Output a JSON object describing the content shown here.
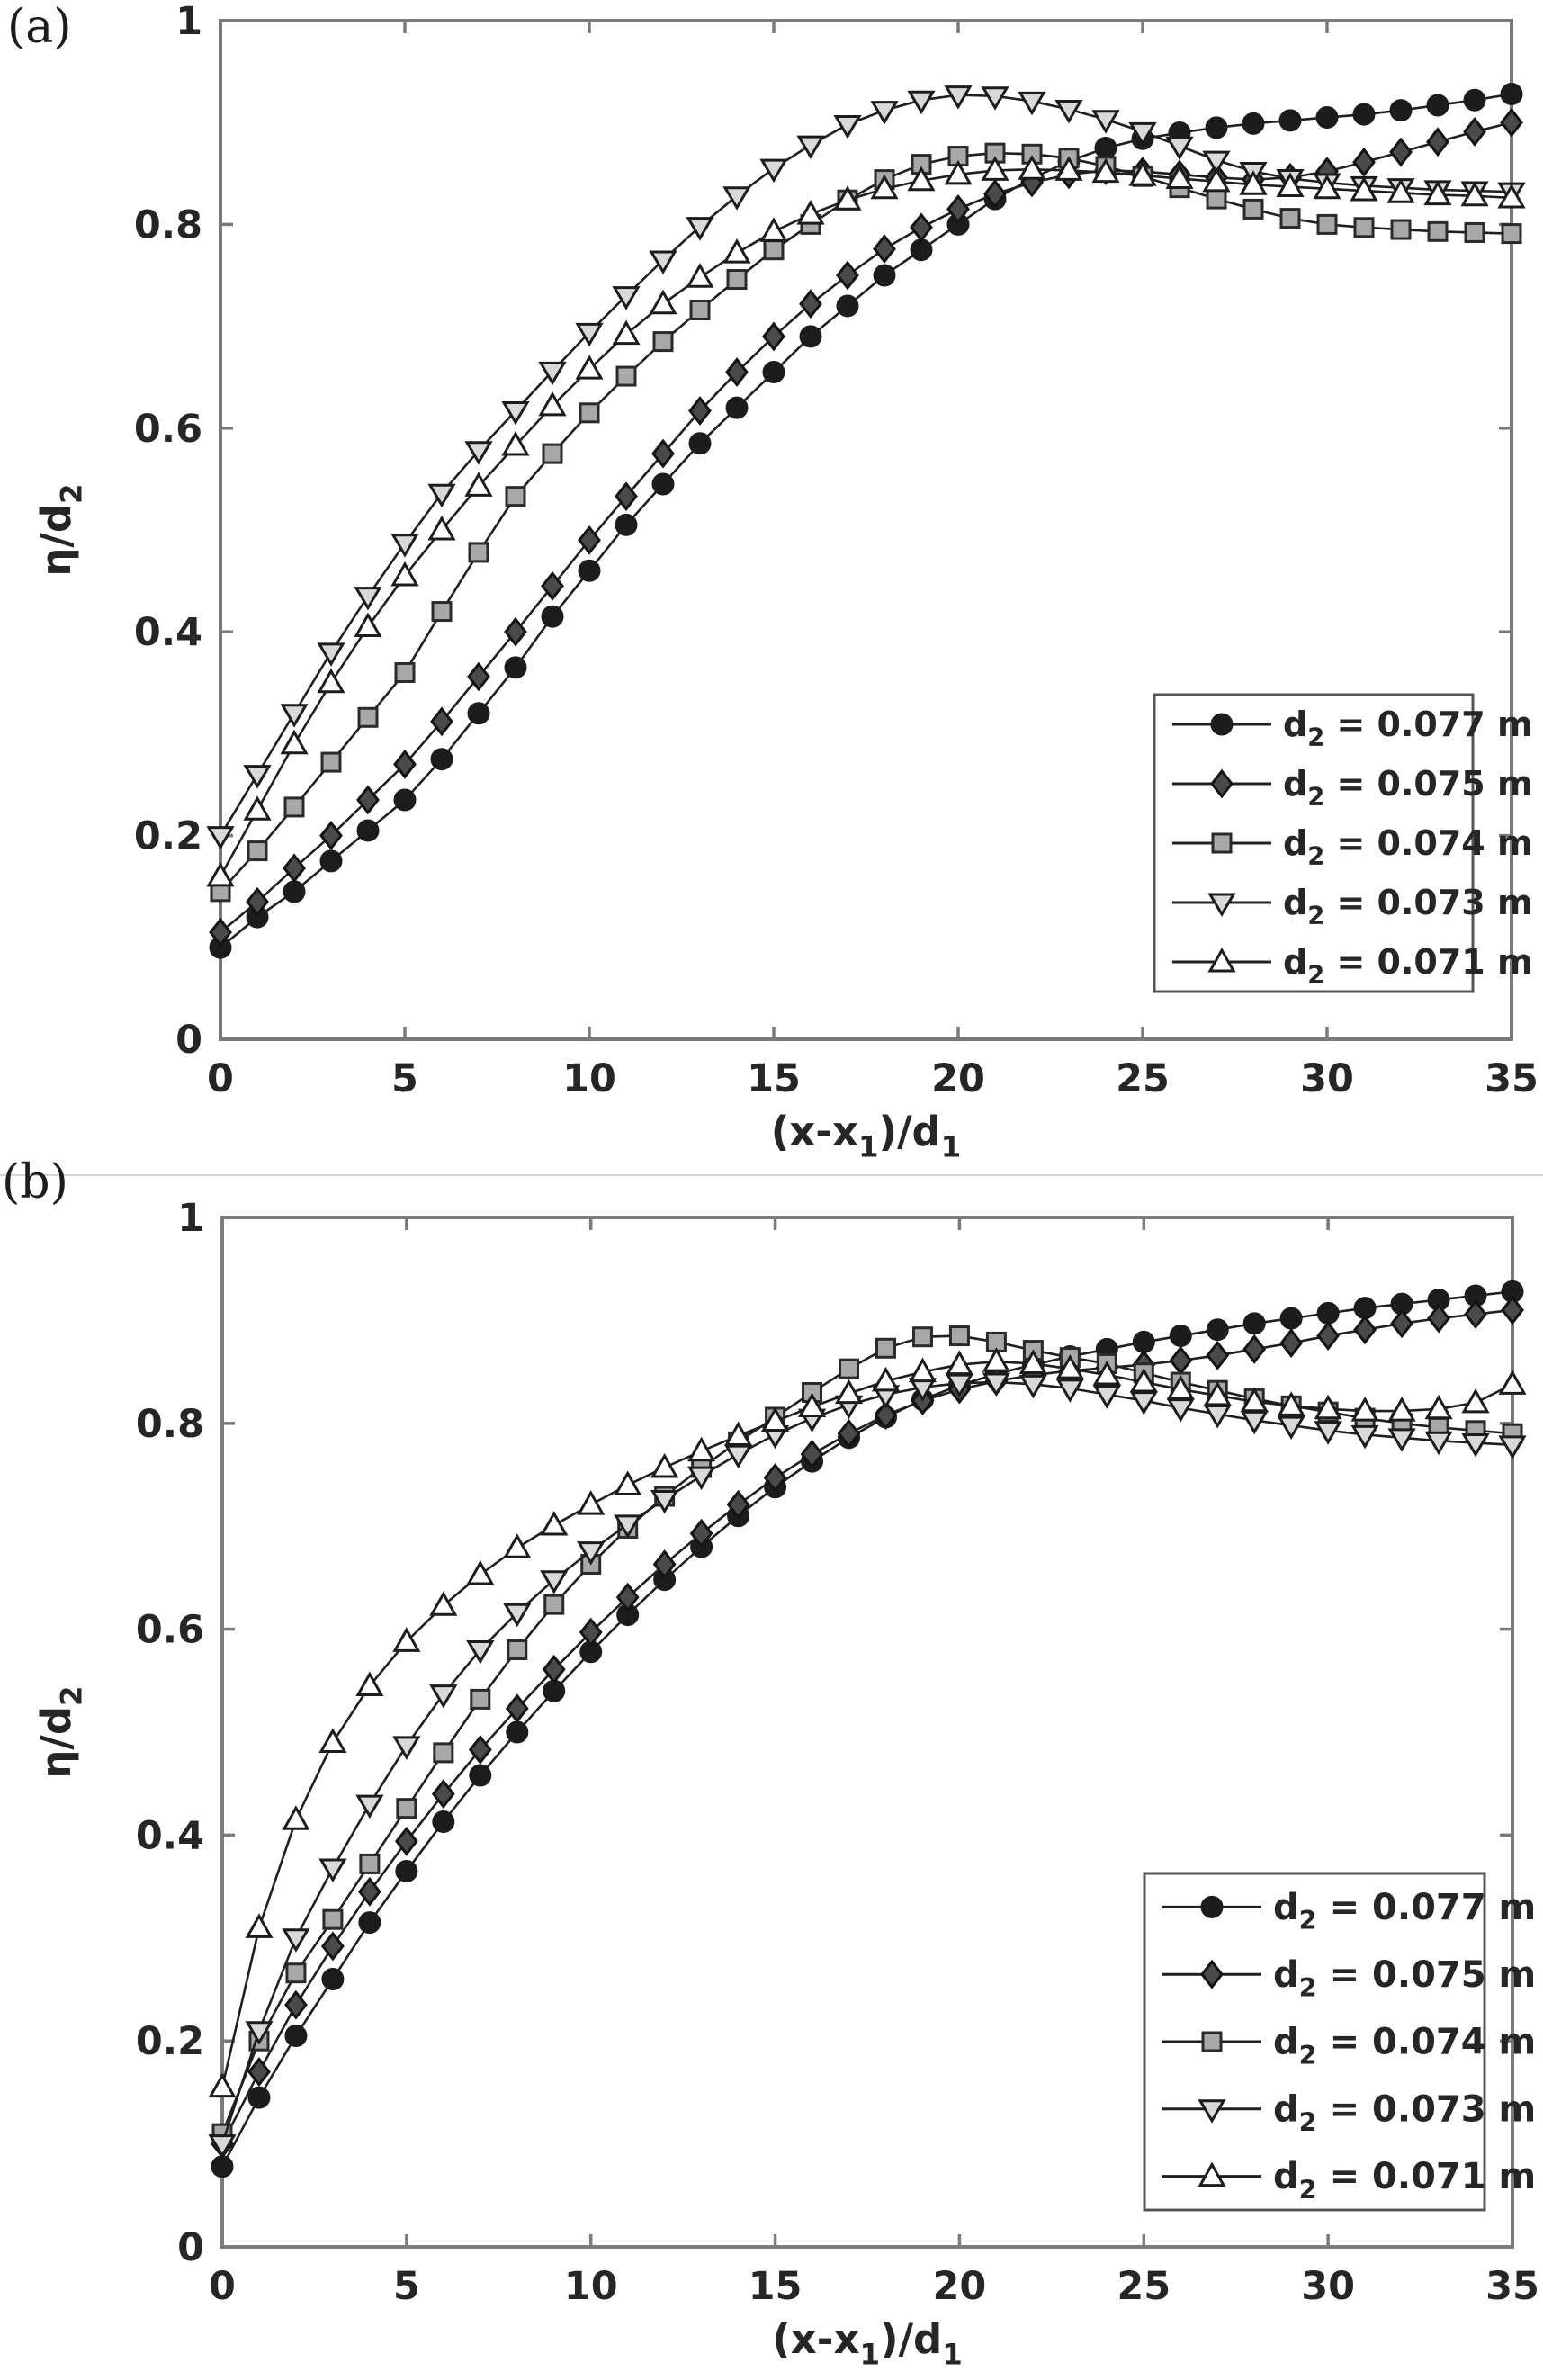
{
  "figure": {
    "panels": [
      {
        "tag": "(a)"
      },
      {
        "tag": "(b)"
      }
    ],
    "colors": {
      "axis": "#7a7a7a",
      "text": "#262626",
      "line": "#1f1f1f",
      "separator": "#d4d4d4"
    }
  },
  "chart_data": [
    {
      "type": "line",
      "panel": "(a)",
      "title": "",
      "xlabel": "(x-x_1)/d_1",
      "ylabel": "η/d_2",
      "xlim": [
        0,
        35
      ],
      "ylim": [
        0,
        1
      ],
      "xticks": [
        0,
        5,
        10,
        15,
        20,
        25,
        30,
        35
      ],
      "yticks": [
        0,
        0.2,
        0.4,
        0.6,
        0.8,
        1
      ],
      "grid": false,
      "legend_position": "lower right",
      "x": [
        0,
        1,
        2,
        3,
        4,
        5,
        6,
        7,
        8,
        9,
        10,
        11,
        12,
        13,
        14,
        15,
        16,
        17,
        18,
        19,
        20,
        21,
        22,
        23,
        24,
        25,
        26,
        27,
        28,
        29,
        30,
        31,
        32,
        33,
        34,
        35
      ],
      "series": [
        {
          "name": "d_2 = 0.077 m",
          "marker": "circle",
          "marker_fill": "#1c1c1c",
          "marker_edge": "#1c1c1c",
          "values": [
            0.09,
            0.12,
            0.145,
            0.175,
            0.205,
            0.235,
            0.275,
            0.32,
            0.365,
            0.415,
            0.46,
            0.505,
            0.545,
            0.585,
            0.62,
            0.655,
            0.69,
            0.72,
            0.75,
            0.775,
            0.8,
            0.825,
            0.845,
            0.862,
            0.875,
            0.884,
            0.89,
            0.895,
            0.899,
            0.902,
            0.905,
            0.908,
            0.912,
            0.917,
            0.922,
            0.928
          ]
        },
        {
          "name": "d_2 = 0.075 m",
          "marker": "diamond",
          "marker_fill": "#4a4a4a",
          "marker_edge": "#141414",
          "values": [
            0.105,
            0.135,
            0.168,
            0.2,
            0.235,
            0.27,
            0.312,
            0.356,
            0.4,
            0.445,
            0.49,
            0.533,
            0.575,
            0.617,
            0.655,
            0.69,
            0.722,
            0.75,
            0.776,
            0.797,
            0.815,
            0.83,
            0.841,
            0.849,
            0.853,
            0.852,
            0.849,
            0.846,
            0.844,
            0.846,
            0.852,
            0.861,
            0.871,
            0.881,
            0.891,
            0.9
          ]
        },
        {
          "name": "d_2 = 0.074 m",
          "marker": "square",
          "marker_fill": "#a8a8a8",
          "marker_edge": "#2a2a2a",
          "values": [
            0.145,
            0.185,
            0.228,
            0.272,
            0.316,
            0.36,
            0.42,
            0.478,
            0.533,
            0.575,
            0.615,
            0.651,
            0.685,
            0.716,
            0.746,
            0.775,
            0.8,
            0.824,
            0.844,
            0.859,
            0.867,
            0.87,
            0.869,
            0.865,
            0.857,
            0.847,
            0.836,
            0.825,
            0.815,
            0.806,
            0.8,
            0.797,
            0.795,
            0.793,
            0.792,
            0.791
          ]
        },
        {
          "name": "d_2 = 0.073 m",
          "marker": "tri-down",
          "marker_fill": "#d9d9d9",
          "marker_edge": "#1c1c1c",
          "values": [
            0.2,
            0.26,
            0.32,
            0.38,
            0.435,
            0.487,
            0.536,
            0.578,
            0.617,
            0.656,
            0.694,
            0.73,
            0.765,
            0.798,
            0.828,
            0.855,
            0.878,
            0.898,
            0.912,
            0.922,
            0.927,
            0.926,
            0.921,
            0.913,
            0.903,
            0.891,
            0.877,
            0.863,
            0.852,
            0.845,
            0.841,
            0.838,
            0.836,
            0.834,
            0.833,
            0.832
          ]
        },
        {
          "name": "d_2 = 0.071 m",
          "marker": "tri-up",
          "marker_fill": "#ffffff",
          "marker_edge": "#1c1c1c",
          "values": [
            0.16,
            0.225,
            0.29,
            0.35,
            0.405,
            0.455,
            0.5,
            0.543,
            0.583,
            0.622,
            0.658,
            0.692,
            0.722,
            0.748,
            0.772,
            0.793,
            0.81,
            0.824,
            0.835,
            0.843,
            0.849,
            0.853,
            0.854,
            0.853,
            0.851,
            0.848,
            0.845,
            0.842,
            0.839,
            0.837,
            0.835,
            0.833,
            0.831,
            0.829,
            0.828,
            0.826
          ]
        }
      ]
    },
    {
      "type": "line",
      "panel": "(b)",
      "title": "",
      "xlabel": "(x-x_1)/d_1",
      "ylabel": "η/d_2",
      "xlim": [
        0,
        35
      ],
      "ylim": [
        0,
        1
      ],
      "xticks": [
        0,
        5,
        10,
        15,
        20,
        25,
        30,
        35
      ],
      "yticks": [
        0,
        0.2,
        0.4,
        0.6,
        0.8,
        1
      ],
      "grid": false,
      "legend_position": "lower right",
      "x": [
        0,
        1,
        2,
        3,
        4,
        5,
        6,
        7,
        8,
        9,
        10,
        11,
        12,
        13,
        14,
        15,
        16,
        17,
        18,
        19,
        20,
        21,
        22,
        23,
        24,
        25,
        26,
        27,
        28,
        29,
        30,
        31,
        32,
        33,
        34,
        35
      ],
      "series": [
        {
          "name": "d_2 = 0.077 m",
          "marker": "circle",
          "marker_fill": "#1c1c1c",
          "marker_edge": "#1c1c1c",
          "values": [
            0.078,
            0.145,
            0.205,
            0.26,
            0.315,
            0.365,
            0.413,
            0.458,
            0.5,
            0.54,
            0.578,
            0.614,
            0.648,
            0.68,
            0.71,
            0.738,
            0.763,
            0.786,
            0.806,
            0.823,
            0.837,
            0.848,
            0.857,
            0.865,
            0.872,
            0.879,
            0.885,
            0.891,
            0.897,
            0.902,
            0.907,
            0.912,
            0.916,
            0.92,
            0.924,
            0.928
          ]
        },
        {
          "name": "d_2 = 0.075 m",
          "marker": "diamond",
          "marker_fill": "#4a4a4a",
          "marker_edge": "#141414",
          "values": [
            0.1,
            0.17,
            0.235,
            0.292,
            0.345,
            0.394,
            0.44,
            0.483,
            0.523,
            0.561,
            0.597,
            0.631,
            0.663,
            0.693,
            0.721,
            0.747,
            0.77,
            0.79,
            0.808,
            0.822,
            0.833,
            0.841,
            0.847,
            0.851,
            0.854,
            0.857,
            0.861,
            0.866,
            0.872,
            0.878,
            0.885,
            0.891,
            0.897,
            0.902,
            0.906,
            0.91
          ]
        },
        {
          "name": "d_2 = 0.074 m",
          "marker": "square",
          "marker_fill": "#a8a8a8",
          "marker_edge": "#2a2a2a",
          "values": [
            0.11,
            0.2,
            0.266,
            0.318,
            0.372,
            0.426,
            0.48,
            0.532,
            0.58,
            0.624,
            0.663,
            0.698,
            0.729,
            0.757,
            0.782,
            0.806,
            0.83,
            0.853,
            0.873,
            0.884,
            0.885,
            0.879,
            0.871,
            0.864,
            0.858,
            0.849,
            0.84,
            0.832,
            0.824,
            0.817,
            0.811,
            0.805,
            0.8,
            0.796,
            0.793,
            0.79
          ]
        },
        {
          "name": "d_2 = 0.073 m",
          "marker": "tri-down",
          "marker_fill": "#d9d9d9",
          "marker_edge": "#1c1c1c",
          "values": [
            0.1,
            0.21,
            0.3,
            0.368,
            0.43,
            0.487,
            0.537,
            0.58,
            0.616,
            0.648,
            0.676,
            0.702,
            0.726,
            0.749,
            0.77,
            0.789,
            0.805,
            0.818,
            0.828,
            0.835,
            0.839,
            0.84,
            0.838,
            0.834,
            0.828,
            0.822,
            0.815,
            0.809,
            0.803,
            0.798,
            0.793,
            0.789,
            0.786,
            0.783,
            0.781,
            0.779
          ]
        },
        {
          "name": "d_2 = 0.071 m",
          "marker": "tri-up",
          "marker_fill": "#ffffff",
          "marker_edge": "#1c1c1c",
          "values": [
            0.155,
            0.31,
            0.415,
            0.49,
            0.545,
            0.588,
            0.623,
            0.653,
            0.679,
            0.701,
            0.721,
            0.74,
            0.757,
            0.773,
            0.788,
            0.802,
            0.816,
            0.829,
            0.841,
            0.85,
            0.857,
            0.86,
            0.858,
            0.853,
            0.847,
            0.84,
            0.833,
            0.827,
            0.821,
            0.817,
            0.814,
            0.812,
            0.812,
            0.814,
            0.82,
            0.838
          ]
        }
      ]
    }
  ]
}
